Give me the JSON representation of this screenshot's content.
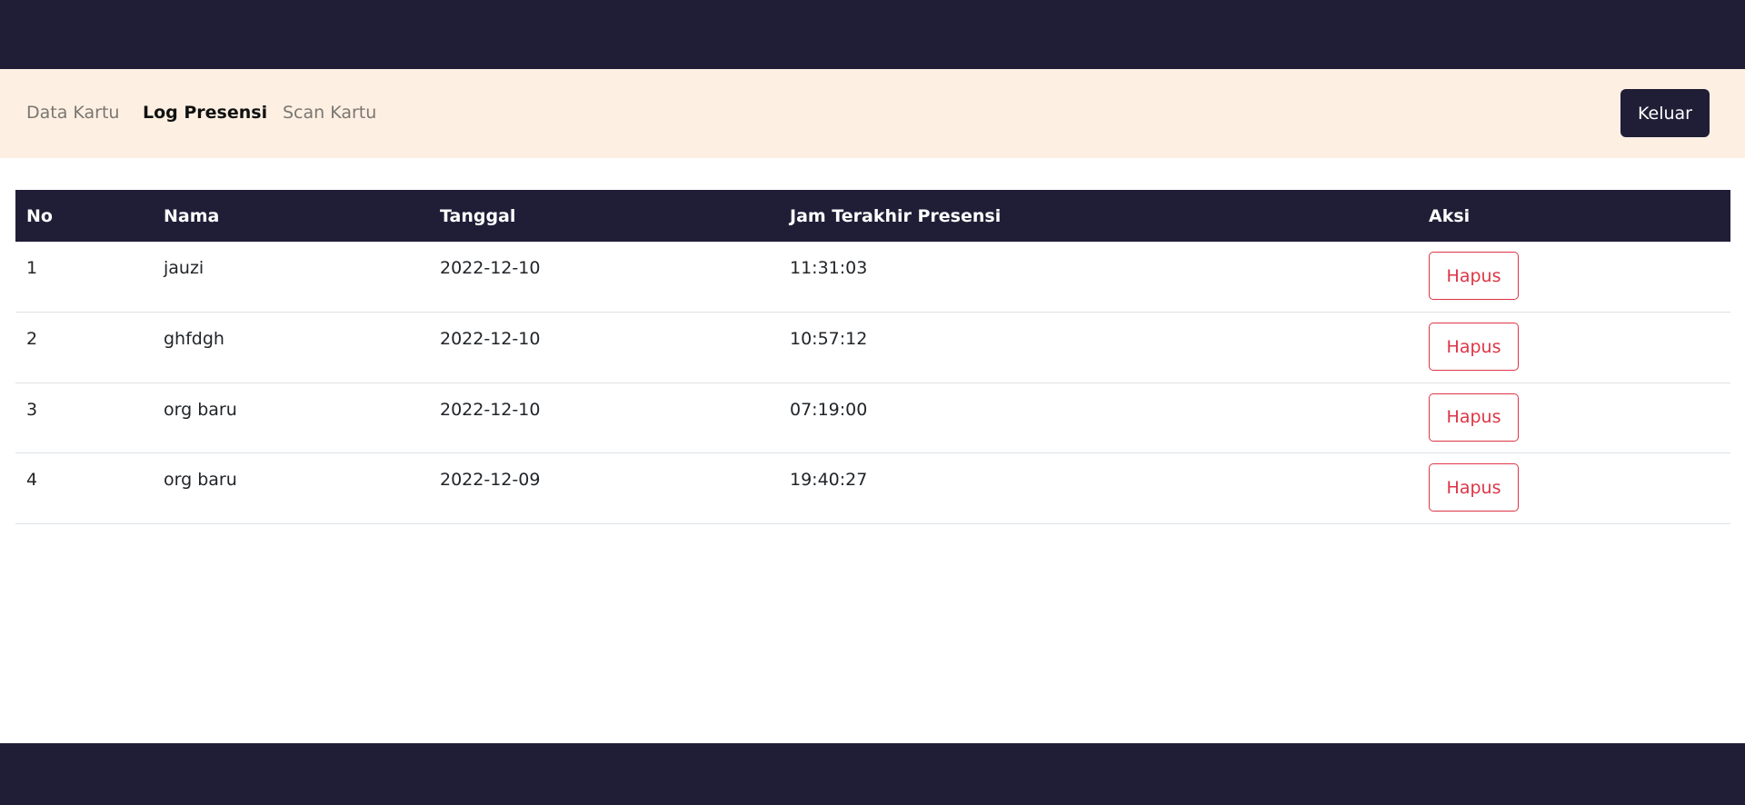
{
  "nav": {
    "items": [
      {
        "label": "Data Kartu",
        "active": false
      },
      {
        "label": "Log Presensi",
        "active": true
      },
      {
        "label": "Scan Kartu",
        "active": false
      }
    ],
    "logout_label": "Keluar"
  },
  "table": {
    "headers": [
      "No",
      "Nama",
      "Tanggal",
      "Jam Terakhir Presensi",
      "Aksi"
    ],
    "rows": [
      {
        "no": "1",
        "nama": "jauzi",
        "tanggal": "2022-12-10",
        "jam": "11:31:03",
        "aksi": "Hapus"
      },
      {
        "no": "2",
        "nama": "ghfdgh",
        "tanggal": "2022-12-10",
        "jam": "10:57:12",
        "aksi": "Hapus"
      },
      {
        "no": "3",
        "nama": "org baru",
        "tanggal": "2022-12-10",
        "jam": "07:19:00",
        "aksi": "Hapus"
      },
      {
        "no": "4",
        "nama": "org baru",
        "tanggal": "2022-12-09",
        "jam": "19:40:27",
        "aksi": "Hapus"
      }
    ]
  },
  "colors": {
    "dark": "#201e37",
    "subnav": "#fdf0e3",
    "danger": "#dc3545"
  }
}
